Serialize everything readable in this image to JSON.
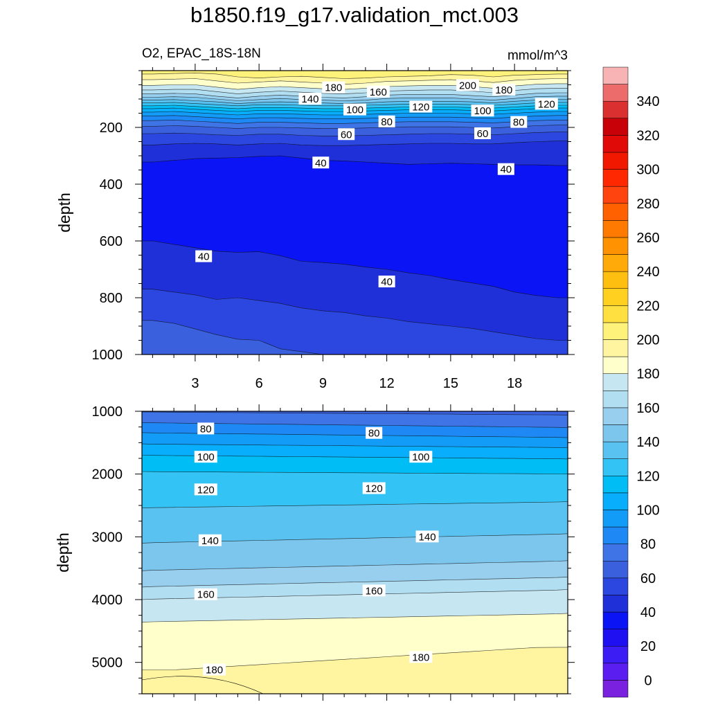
{
  "chart_data": {
    "type": "contour",
    "title": "b1850.f19_g17.validation_mct.003",
    "subtitle_left": "O2, EPAC_18S-18N",
    "units": "mmol/m^3",
    "colorbar": {
      "tick_labels": [
        "0",
        "20",
        "40",
        "60",
        "80",
        "100",
        "120",
        "140",
        "160",
        "180",
        "200",
        "220",
        "240",
        "260",
        "280",
        "300",
        "320",
        "340"
      ],
      "levels": [
        -10,
        0,
        10,
        20,
        30,
        40,
        50,
        60,
        70,
        80,
        90,
        100,
        110,
        120,
        130,
        140,
        150,
        160,
        170,
        180,
        190,
        200,
        210,
        220,
        230,
        240,
        250,
        260,
        270,
        280,
        290,
        300,
        310,
        320,
        330,
        340,
        350,
        360
      ],
      "colors": [
        "#7a21e0",
        "#5a1ef0",
        "#3c1ef5",
        "#1e10f0",
        "#0a14f5",
        "#2030d8",
        "#2c47e0",
        "#3a60de",
        "#3f74e6",
        "#1e88f5",
        "#129cf7",
        "#08aefc",
        "#00bef5",
        "#33c4f5",
        "#5ac2f0",
        "#7cc6ee",
        "#98cfee",
        "#b2def2",
        "#c6e6f2",
        "#ffffcc",
        "#fff5a0",
        "#fff27a",
        "#ffe040",
        "#ffd020",
        "#ffbf10",
        "#ffaa08",
        "#ff9200",
        "#ff7a00",
        "#ff6000",
        "#ff4410",
        "#ff2800",
        "#f21800",
        "#e00a08",
        "#c80008",
        "#da3030",
        "#ec6c6c",
        "#f8b4b4"
      ]
    },
    "panels": [
      {
        "name": "upper",
        "x": [
          1,
          2,
          3,
          4,
          5,
          6,
          7,
          8,
          9,
          10,
          11,
          12,
          13,
          14,
          15,
          16,
          17,
          18,
          19,
          20
        ],
        "xlim": [
          0.5,
          20.5
        ],
        "x_tick_labels": [
          "3",
          "6",
          "9",
          "12",
          "15",
          "18"
        ],
        "x_tick_values": [
          3,
          6,
          9,
          12,
          15,
          18
        ],
        "ylim": [
          0,
          1000
        ],
        "y_tick_labels": [
          "200",
          "400",
          "600",
          "800",
          "1000"
        ],
        "y_tick_values": [
          200,
          400,
          600,
          800,
          1000
        ],
        "ylabel": "depth",
        "contour_labels": [
          {
            "text": "180",
            "x": 9.5,
            "y": 60
          },
          {
            "text": "160",
            "x": 11.6,
            "y": 75
          },
          {
            "text": "200",
            "x": 15.8,
            "y": 52
          },
          {
            "text": "180",
            "x": 17.5,
            "y": 68
          },
          {
            "text": "140",
            "x": 8.4,
            "y": 100
          },
          {
            "text": "100",
            "x": 10.5,
            "y": 138
          },
          {
            "text": "120",
            "x": 13.6,
            "y": 128
          },
          {
            "text": "100",
            "x": 16.5,
            "y": 142
          },
          {
            "text": "120",
            "x": 19.5,
            "y": 118
          },
          {
            "text": "80",
            "x": 12.0,
            "y": 180
          },
          {
            "text": "80",
            "x": 18.2,
            "y": 182
          },
          {
            "text": "60",
            "x": 10.1,
            "y": 225
          },
          {
            "text": "60",
            "x": 16.5,
            "y": 222
          },
          {
            "text": "40",
            "x": 8.9,
            "y": 325
          },
          {
            "text": "40",
            "x": 17.6,
            "y": 348
          },
          {
            "text": "40",
            "x": 3.4,
            "y": 655
          },
          {
            "text": "40",
            "x": 12.0,
            "y": 744
          }
        ]
      },
      {
        "name": "lower",
        "xlim": [
          0.5,
          20.5
        ],
        "ylim": [
          1000,
          5500
        ],
        "y_tick_labels": [
          "1000",
          "2000",
          "3000",
          "4000",
          "5000"
        ],
        "y_tick_values": [
          1000,
          2000,
          3000,
          4000,
          5000
        ],
        "ylabel": "depth",
        "contour_labels": [
          {
            "text": "80",
            "x": 3.5,
            "y": 1280
          },
          {
            "text": "80",
            "x": 11.4,
            "y": 1350
          },
          {
            "text": "100",
            "x": 3.5,
            "y": 1730
          },
          {
            "text": "100",
            "x": 13.6,
            "y": 1730
          },
          {
            "text": "120",
            "x": 3.5,
            "y": 2250
          },
          {
            "text": "120",
            "x": 11.4,
            "y": 2230
          },
          {
            "text": "140",
            "x": 3.7,
            "y": 3060
          },
          {
            "text": "140",
            "x": 13.9,
            "y": 3000
          },
          {
            "text": "160",
            "x": 3.5,
            "y": 3920
          },
          {
            "text": "160",
            "x": 11.4,
            "y": 3860
          },
          {
            "text": "180",
            "x": 3.9,
            "y": 5120
          },
          {
            "text": "180",
            "x": 13.6,
            "y": 4920
          }
        ]
      }
    ]
  }
}
